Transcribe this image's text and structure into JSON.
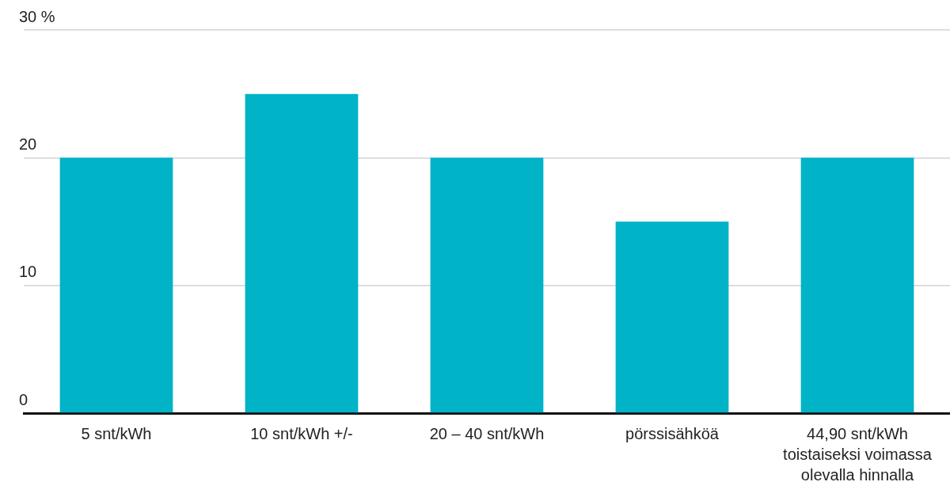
{
  "chart_data": {
    "type": "bar",
    "categories": [
      "5 snt/kWh",
      "10 snt/kWh +/-",
      "20 – 40 snt/kWh",
      "pörssisähköä",
      "44,90 snt/kWh toistaiseksi voimassa olevalla hinnalla"
    ],
    "values": [
      20,
      25,
      20,
      15,
      20
    ],
    "color": "#00b3c7",
    "ylim": [
      0,
      30
    ],
    "yticks": [
      0,
      10,
      20,
      {
        "value": 30,
        "label": "30 %"
      }
    ],
    "grid": "y"
  }
}
